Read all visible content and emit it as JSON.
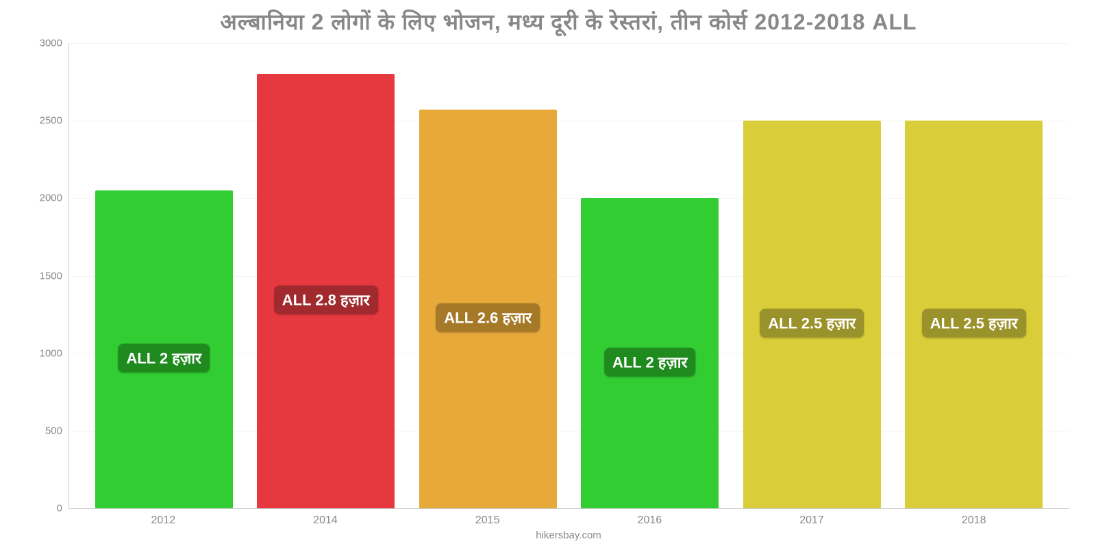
{
  "chart": {
    "type": "bar",
    "title": "अल्बानिया 2 लोगों के लिए भोजन, मध्य दूरी के रेस्तरां, तीन कोर्स 2012-2018 ALL",
    "title_color": "#888888",
    "title_fontsize": 32,
    "background_color": "#ffffff",
    "grid_color": "#f5f5f5",
    "axis_color": "#cccccc",
    "tick_color": "#888888",
    "tick_fontsize": 15,
    "xlabel_fontsize": 16,
    "ylim": [
      0,
      3000
    ],
    "ytick_step": 500,
    "yticks": [
      0,
      500,
      1000,
      1500,
      2000,
      2500,
      3000
    ],
    "categories": [
      "2012",
      "2014",
      "2015",
      "2016",
      "2017",
      "2018"
    ],
    "values": [
      2050,
      2800,
      2570,
      2000,
      2500,
      2500
    ],
    "bar_colors": [
      "#32cd32",
      "#e6393f",
      "#e7a93a",
      "#32cd32",
      "#d9ce3a",
      "#d9ce3a"
    ],
    "bar_label_bg": [
      "#1f8b1f",
      "#a02a2e",
      "#a57928",
      "#1f8b1f",
      "#9a922a",
      "#9a922a"
    ],
    "bar_labels": [
      "ALL 2 हज़ार",
      "ALL 2.8 हज़ार",
      "ALL 2.6 हज़ार",
      "ALL 2 हज़ार",
      "ALL 2.5 हज़ार",
      "ALL 2.5 हज़ार"
    ],
    "bar_label_color": "#ffffff",
    "bar_label_fontsize": 22,
    "bar_width": 0.85,
    "attribution": "hikersbay.com"
  }
}
